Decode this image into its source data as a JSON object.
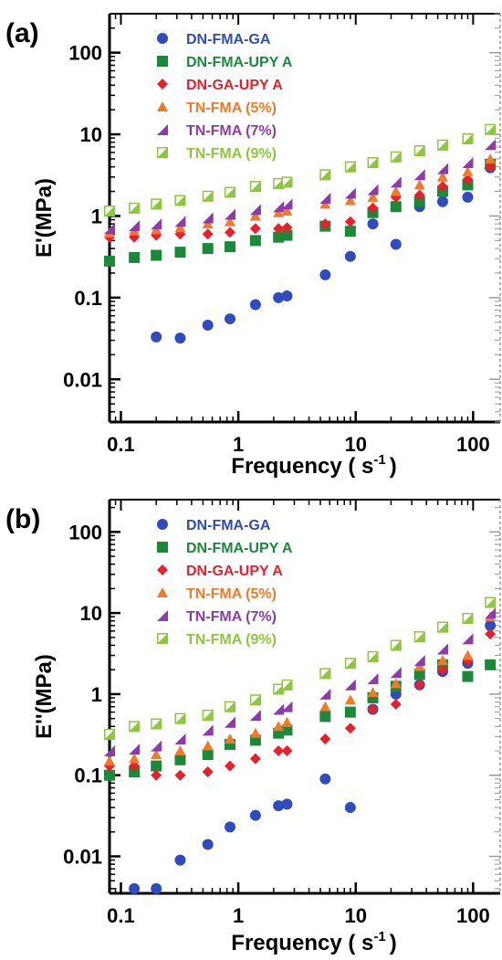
{
  "figure": {
    "legend_position": "top-left"
  },
  "chart_data": [
    {
      "type": "scatter",
      "panel_label": "(a)",
      "xlabel": "Frequency ( s",
      "xlabel_sup": "-1",
      "xlabel_end": ")",
      "ylabel": "E'(MPa)",
      "xscale": "log",
      "yscale": "log",
      "xlim": [
        0.08,
        170
      ],
      "ylim": [
        0.003,
        300
      ],
      "x_ticks": [
        0.1,
        1,
        10,
        100
      ],
      "x_tick_labels": [
        "0.1",
        "1",
        "10",
        "100"
      ],
      "y_ticks": [
        0.01,
        0.1,
        1,
        10,
        100
      ],
      "y_tick_labels": [
        "0.01",
        "0.1",
        "1",
        "10",
        "100"
      ],
      "grid": false,
      "legend": "top-left",
      "series": [
        {
          "name": "DN-FMA-GA",
          "color": "#2f4bbd",
          "marker": "circle",
          "x": [
            0.2,
            0.32,
            0.55,
            0.85,
            1.4,
            2.2,
            2.6,
            5.5,
            9,
            14,
            22,
            35,
            55,
            90,
            140
          ],
          "y": [
            0.033,
            0.032,
            0.046,
            0.055,
            0.082,
            0.1,
            0.105,
            0.19,
            0.32,
            0.8,
            0.45,
            1.3,
            1.5,
            1.7,
            3.9
          ]
        },
        {
          "name": "DN-FMA-UPY A",
          "color": "#1a8a3a",
          "marker": "square",
          "x": [
            0.08,
            0.13,
            0.2,
            0.32,
            0.55,
            0.85,
            1.4,
            2.2,
            2.6,
            5.5,
            9,
            14,
            22,
            35,
            55,
            90,
            140
          ],
          "y": [
            0.28,
            0.31,
            0.33,
            0.36,
            0.4,
            0.42,
            0.5,
            0.55,
            0.58,
            0.75,
            0.65,
            1.1,
            1.3,
            1.5,
            2.0,
            2.4,
            4.3
          ]
        },
        {
          "name": "DN-GA-UPY A",
          "color": "#e8202a",
          "marker": "diamond",
          "x": [
            0.08,
            0.13,
            0.2,
            0.32,
            0.55,
            0.85,
            1.4,
            2.2,
            2.6,
            5.5,
            9,
            14,
            22,
            35,
            55,
            90,
            140
          ],
          "y": [
            0.55,
            0.55,
            0.58,
            0.6,
            0.6,
            0.63,
            0.7,
            0.7,
            0.72,
            0.8,
            0.85,
            1.25,
            1.7,
            1.8,
            2.3,
            2.8,
            4.0
          ]
        },
        {
          "name": "TN-FMA (5%)",
          "color": "#f07a2a",
          "marker": "triangle",
          "x": [
            0.08,
            0.13,
            0.2,
            0.32,
            0.55,
            0.85,
            1.4,
            2.2,
            2.6,
            5.5,
            9,
            14,
            22,
            35,
            55,
            90,
            140
          ],
          "y": [
            0.62,
            0.66,
            0.68,
            0.72,
            0.8,
            0.85,
            1.0,
            1.1,
            1.15,
            1.4,
            1.55,
            1.7,
            2.0,
            2.4,
            3.0,
            3.5,
            5.0
          ]
        },
        {
          "name": "TN-FMA (7%)",
          "color": "#8e3aa8",
          "marker": "wedge",
          "x": [
            0.08,
            0.13,
            0.2,
            0.32,
            0.55,
            0.85,
            1.4,
            2.2,
            2.6,
            5.5,
            9,
            14,
            22,
            35,
            55,
            90,
            140
          ],
          "y": [
            0.7,
            0.76,
            0.8,
            0.86,
            0.95,
            1.05,
            1.2,
            1.3,
            1.4,
            1.65,
            1.9,
            2.1,
            2.6,
            3.2,
            3.8,
            4.5,
            7.5
          ]
        },
        {
          "name": "TN-FMA (9%)",
          "color": "#8dc63f",
          "marker": "halfsquare",
          "x": [
            0.08,
            0.13,
            0.2,
            0.32,
            0.55,
            0.85,
            1.4,
            2.2,
            2.6,
            5.5,
            9,
            14,
            22,
            35,
            55,
            90,
            140
          ],
          "y": [
            1.15,
            1.25,
            1.4,
            1.55,
            1.75,
            1.95,
            2.3,
            2.5,
            2.6,
            3.2,
            4.0,
            4.5,
            5.3,
            6.3,
            7.4,
            8.8,
            11.5
          ]
        }
      ]
    },
    {
      "type": "scatter",
      "panel_label": "(b)",
      "xlabel": "Frequency ( s",
      "xlabel_sup": "-1",
      "xlabel_end": ")",
      "ylabel": "E''(MPa)",
      "xscale": "log",
      "yscale": "log",
      "xlim": [
        0.08,
        170
      ],
      "ylim": [
        0.0035,
        250
      ],
      "x_ticks": [
        0.1,
        1,
        10,
        100
      ],
      "x_tick_labels": [
        "0.1",
        "1",
        "10",
        "100"
      ],
      "y_ticks": [
        0.01,
        0.1,
        1,
        10,
        100
      ],
      "y_tick_labels": [
        "0.01",
        "0.1",
        "1",
        "10",
        "100"
      ],
      "grid": false,
      "legend": "top-left",
      "series": [
        {
          "name": "DN-FMA-GA",
          "color": "#2f4bbd",
          "marker": "circle",
          "x": [
            0.13,
            0.2,
            0.32,
            0.55,
            0.85,
            1.4,
            2.2,
            2.6,
            5.5,
            9,
            14,
            22,
            35,
            55,
            90,
            140
          ],
          "y": [
            0.004,
            0.004,
            0.009,
            0.014,
            0.023,
            0.032,
            0.042,
            0.044,
            0.09,
            0.04,
            0.65,
            1.0,
            1.3,
            1.9,
            2.4,
            7.0
          ]
        },
        {
          "name": "DN-FMA-UPY A",
          "color": "#1a8a3a",
          "marker": "square",
          "x": [
            0.08,
            0.13,
            0.2,
            0.32,
            0.55,
            0.85,
            1.4,
            2.2,
            2.6,
            5.5,
            9,
            14,
            22,
            35,
            55,
            90,
            140
          ],
          "y": [
            0.1,
            0.11,
            0.13,
            0.155,
            0.18,
            0.24,
            0.27,
            0.33,
            0.36,
            0.53,
            0.6,
            0.9,
            1.25,
            1.75,
            2.3,
            1.65,
            2.3
          ]
        },
        {
          "name": "DN-GA-UPY A",
          "color": "#e8202a",
          "marker": "diamond",
          "x": [
            0.08,
            0.13,
            0.2,
            0.32,
            0.55,
            0.85,
            1.4,
            2.2,
            2.6,
            5.5,
            9,
            14,
            22,
            35,
            55,
            90,
            140
          ],
          "y": [
            0.13,
            0.13,
            0.1,
            0.1,
            0.11,
            0.13,
            0.16,
            0.2,
            0.2,
            0.28,
            0.38,
            0.65,
            0.75,
            1.3,
            2.0,
            2.6,
            5.5
          ]
        },
        {
          "name": "TN-FMA (5%)",
          "color": "#f07a2a",
          "marker": "triangle",
          "x": [
            0.08,
            0.13,
            0.2,
            0.32,
            0.55,
            0.85,
            1.4,
            2.2,
            2.6,
            5.5,
            9,
            14,
            22,
            35,
            55,
            90,
            140
          ],
          "y": [
            0.15,
            0.16,
            0.18,
            0.2,
            0.23,
            0.28,
            0.33,
            0.4,
            0.45,
            0.7,
            0.85,
            1.05,
            1.35,
            2.2,
            2.6,
            3.0,
            9.0
          ]
        },
        {
          "name": "TN-FMA (7%)",
          "color": "#8e3aa8",
          "marker": "wedge",
          "x": [
            0.08,
            0.13,
            0.2,
            0.32,
            0.55,
            0.85,
            1.4,
            2.2,
            2.6,
            5.5,
            9,
            14,
            22,
            35,
            55,
            90,
            140
          ],
          "y": [
            0.2,
            0.21,
            0.23,
            0.28,
            0.36,
            0.45,
            0.55,
            0.65,
            0.7,
            1.0,
            1.3,
            1.55,
            1.85,
            2.6,
            3.6,
            4.8,
            10.0
          ]
        },
        {
          "name": "TN-FMA (9%)",
          "color": "#8dc63f",
          "marker": "halfsquare",
          "x": [
            0.08,
            0.13,
            0.2,
            0.32,
            0.55,
            0.85,
            1.4,
            2.2,
            2.6,
            5.5,
            9,
            14,
            22,
            35,
            55,
            90,
            140
          ],
          "y": [
            0.32,
            0.4,
            0.43,
            0.5,
            0.55,
            0.7,
            0.85,
            1.15,
            1.3,
            1.8,
            2.4,
            2.9,
            4.0,
            5.1,
            6.7,
            8.6,
            13.5
          ]
        }
      ]
    }
  ]
}
